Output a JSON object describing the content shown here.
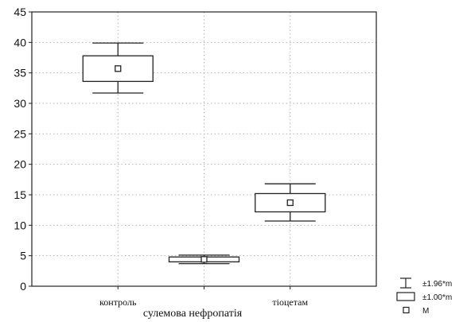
{
  "chart_data": {
    "type": "box",
    "title": "",
    "xlabel": "сулемова нефропатія",
    "ylabel": "",
    "ylim": [
      0,
      45
    ],
    "yticks": [
      0,
      5,
      10,
      15,
      20,
      25,
      30,
      35,
      40,
      45
    ],
    "grid": true,
    "categories": [
      "контроль",
      "",
      "тіоцетам"
    ],
    "groups": [
      {
        "mean": 35.7,
        "box_low": 33.6,
        "box_high": 37.8,
        "whisker_low": 31.7,
        "whisker_high": 39.9
      },
      {
        "mean": 4.4,
        "box_low": 4.0,
        "box_high": 4.8,
        "whisker_low": 3.7,
        "whisker_high": 5.1
      },
      {
        "mean": 13.7,
        "box_low": 12.2,
        "box_high": 15.2,
        "whisker_low": 10.7,
        "whisker_high": 16.8
      }
    ],
    "legend": {
      "position": "bottom-right",
      "items": [
        {
          "symbol": "whisker",
          "label": "±1.96*m"
        },
        {
          "symbol": "box",
          "label": "±1.00*m"
        },
        {
          "symbol": "mean",
          "label": "M"
        }
      ]
    }
  }
}
